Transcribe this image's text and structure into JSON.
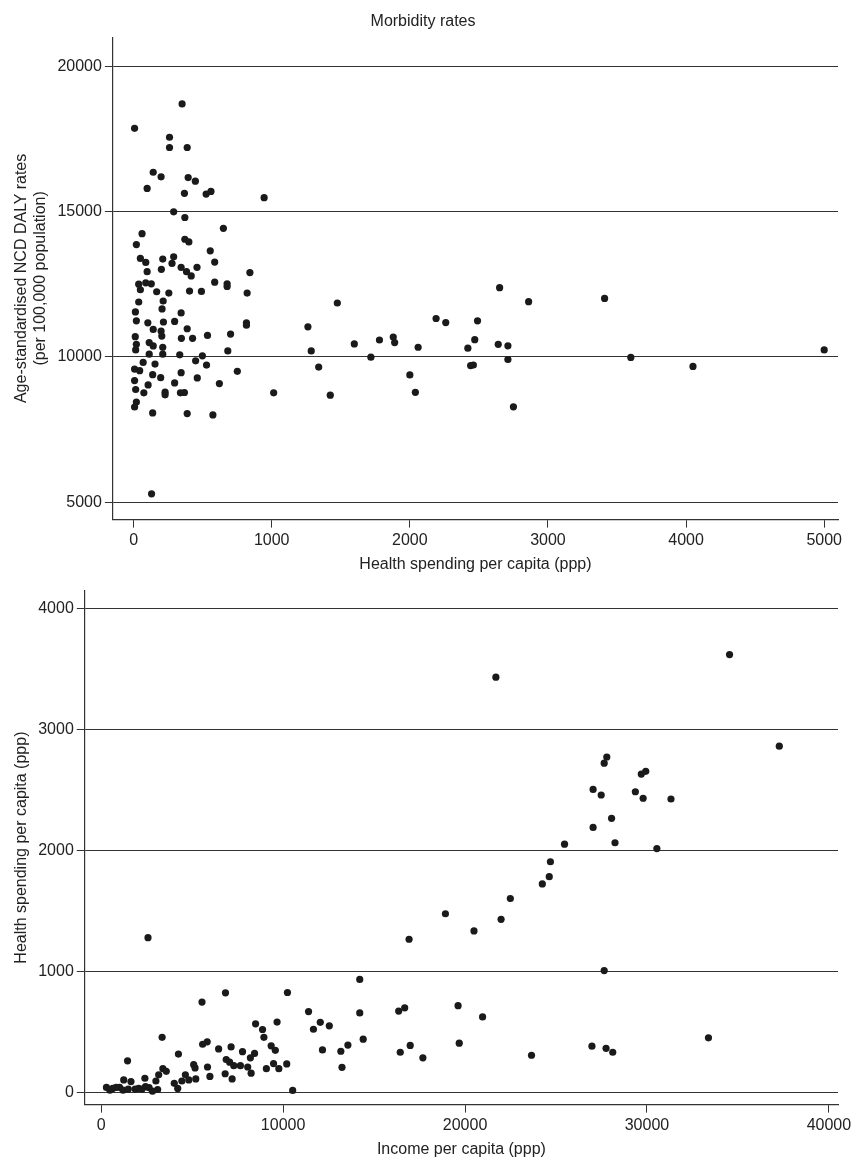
{
  "chart_data": [
    {
      "type": "scatter",
      "title": "Morbidity rates",
      "xlabel": "Health spending per capita (ppp)",
      "ylabel": "Age-standardised NCD DALY rates\n(per 100,000 population)",
      "xlim": [
        -150,
        5100
      ],
      "xticks": [
        0,
        1000,
        2000,
        3000,
        4000,
        5000
      ],
      "ylim": [
        4400,
        21000
      ],
      "yticks": [
        5000,
        10000,
        15000,
        20000
      ],
      "grid": "y",
      "marker": "circle",
      "series": [
        {
          "color": "#1a1a1a",
          "x": [
            351,
            7,
            260,
            260,
            388,
            142,
            199,
            395,
            447,
            98,
            368,
            525,
            560,
            945,
            290,
            371,
            650,
            61,
            20,
            371,
            400,
            555,
            49,
            211,
            290,
            88,
            278,
            587,
            98,
            344,
            383,
            417,
            459,
            201,
            842,
            37,
            88,
            128,
            49,
            167,
            255,
            405,
            491,
            587,
            677,
            677,
            822,
            1475,
            37,
            214,
            13,
            206,
            344,
            20,
            103,
            216,
            297,
            817,
            142,
            199,
            204,
            388,
            12,
            20,
            113,
            142,
            211,
            346,
            427,
            535,
            702,
            817,
            1262,
            1286,
            1598,
            1718,
            1340,
            1424,
            1014,
            15,
            113,
            211,
            334,
            498,
            682,
            449,
            528,
            69,
            155,
            7,
            44,
            344,
            751,
            138,
            196,
            461,
            7,
            105,
            297,
            621,
            15,
            74,
            228,
            228,
            339,
            368,
            20,
            7,
            138,
            388,
            574,
            130,
            1780,
            1880,
            1890,
            2000,
            2040,
            2060,
            2190,
            2260,
            2420,
            2440,
            2460,
            2470,
            2490,
            2640,
            2650,
            2710,
            2710,
            2750,
            2860,
            3410,
            3600,
            4050,
            5000
          ],
          "values": [
            18704,
            17864,
            17557,
            17205,
            17205,
            16353,
            16194,
            16171,
            16046,
            15796,
            15626,
            15603,
            15694,
            15478,
            14990,
            14796,
            14422,
            14240,
            13865,
            14047,
            13956,
            13649,
            13388,
            13365,
            13445,
            13251,
            13217,
            13263,
            12933,
            13081,
            12933,
            12786,
            13081,
            13013,
            12899,
            12502,
            12547,
            12513,
            12309,
            12241,
            12195,
            12263,
            12252,
            12570,
            12513,
            12422,
            12195,
            11854,
            11888,
            11922,
            11547,
            11650,
            11513,
            11240,
            11170,
            11200,
            11220,
            11170,
            10944,
            10887,
            10717,
            10967,
            10694,
            10433,
            10490,
            10376,
            10331,
            10637,
            10637,
            10739,
            10785,
            11092,
            11035,
            10206,
            10444,
            9990,
            9649,
            8683,
            8763,
            10240,
            10092,
            10092,
            10069,
            10035,
            10206,
            9865,
            9717,
            9808,
            9751,
            9581,
            9524,
            9456,
            9501,
            9388,
            9285,
            9274,
            9183,
            9036,
            9104,
            9081,
            8877,
            8763,
            8785,
            8695,
            8763,
            8774,
            8445,
            8274,
            8070,
            8047,
            8002,
            5287,
            10580,
            10680,
            10490,
            9380,
            8780,
            10330,
            11320,
            11180,
            10300,
            9700,
            9720,
            10590,
            11240,
            10430,
            12380,
            10380,
            9910,
            8280,
            11900,
            12010,
            9980,
            9670,
            10240
          ]
        }
      ]
    },
    {
      "type": "scatter",
      "xlabel": "Income per capita (ppp)",
      "ylabel": "Health spending per capita (ppp)",
      "xlim": [
        -900,
        40500
      ],
      "xticks": [
        0,
        10000,
        20000,
        30000,
        40000
      ],
      "ylim": [
        -100,
        4150
      ],
      "yticks": [
        0,
        1000,
        2000,
        3000,
        4000
      ],
      "grid": "y",
      "marker": "circle",
      "series": [
        {
          "color": "#1a1a1a",
          "x": [
            2574,
            5543,
            6833,
            10240,
            11399,
            11667,
            12044,
            12540,
            12164,
            8488,
            8870,
            8945,
            9669,
            9344,
            9572,
            9475,
            9766,
            10200,
            10526,
            9081,
            8242,
            8431,
            8202,
            7769,
            8054,
            7654,
            7289,
            7141,
            6873,
            7061,
            6815,
            7198,
            6456,
            5828,
            5577,
            5845,
            5976,
            5086,
            5160,
            5200,
            4629,
            4818,
            4247,
            4018,
            4207,
            4435,
            3351,
            3391,
            3579,
            3162,
            3008,
            3105,
            2820,
            1450,
            1239,
            1638,
            2403,
            2437,
            2631,
            2061,
            1866,
            1490,
            1010,
            822,
            634,
            291,
            479,
            1204,
            2249,
            34539,
            21696,
            37273,
            27792,
            27649,
            29933,
            29688,
            27039,
            27484,
            29362,
            29790,
            31320,
            28055,
            27039,
            28243,
            25469,
            30544,
            24693,
            24630,
            24248,
            22490,
            21982,
            18922,
            20492,
            16924,
            27649,
            14213,
            14213,
            16353,
            16684,
            19618,
            20965,
            14401,
            13562,
            13174,
            13237,
            16439,
            16987,
            17683,
            19681,
            23654,
            26976,
            27752,
            28118,
            33380
          ],
          "values": [
            1280,
            748,
            824,
            827,
            669,
            523,
            580,
            551,
            352,
            568,
            521,
            456,
            582,
            386,
            349,
            239,
            197,
            236,
            17,
            197,
            160,
            323,
            287,
            338,
            211,
            222,
            222,
            377,
            273,
            251,
            155,
            112,
            360,
            419,
            399,
            211,
            133,
            230,
            203,
            112,
            146,
            104,
            318,
            76,
            34,
            95,
            456,
            197,
            175,
            146,
            95,
            25,
            11,
            262,
            104,
            90,
            118,
            48,
            40,
            34,
            28,
            28,
            42,
            42,
            34,
            42,
            19,
            19,
            28,
            3621,
            3434,
            2864,
            2774,
            2723,
            2656,
            2633,
            2506,
            2460,
            2487,
            2433,
            2427,
            2267,
            2192,
            2065,
            2053,
            2017,
            1908,
            1785,
            1725,
            1604,
            1432,
            1478,
            1336,
            1267,
            1008,
            935,
            658,
            673,
            700,
            718,
            625,
            441,
            392,
            341,
            208,
            333,
            389,
            287,
            408,
            308,
            383,
            365,
            333,
            452
          ]
        }
      ]
    }
  ]
}
